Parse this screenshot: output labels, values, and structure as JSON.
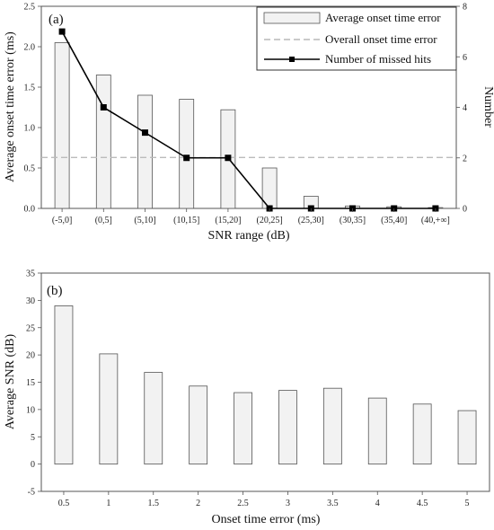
{
  "chart_data": [
    {
      "type": "bar",
      "panel_label": "(a)",
      "categories": [
        "(-5,0]",
        "(0,5]",
        "(5,10]",
        "(10,15]",
        "(15,20]",
        "(20,25]",
        "(25,30]",
        "(30,35]",
        "(35,40]",
        "(40,+∞]"
      ],
      "xlabel": "SNR range (dB)",
      "ylabel": "Average onset time error (ms)",
      "y2label": "Number",
      "ylim": [
        0,
        2.5
      ],
      "y2lim": [
        0,
        8
      ],
      "yticks": [
        "0.0",
        "0.5",
        "1.0",
        "1.5",
        "2.0",
        "2.5"
      ],
      "y2ticks": [
        "0",
        "2",
        "4",
        "6",
        "8"
      ],
      "legend_position": "top-right",
      "bars": {
        "name": "Average onset time error",
        "values": [
          2.05,
          1.65,
          1.4,
          1.35,
          1.22,
          0.5,
          0.15,
          0.03,
          0.02,
          0.01
        ],
        "color": "#f2f2f2"
      },
      "reference_line": {
        "name": "Overall onset time error",
        "value": 0.63,
        "color": "#bbbbbb"
      },
      "line": {
        "name": "Number of missed hits",
        "values": [
          7,
          4,
          3,
          2,
          2,
          0,
          0,
          0,
          0,
          0
        ],
        "axis": "right",
        "color": "#000000"
      }
    },
    {
      "type": "bar",
      "panel_label": "(b)",
      "categories": [
        "0.5",
        "1",
        "1.5",
        "2",
        "2.5",
        "3",
        "3.5",
        "4",
        "4.5",
        "5"
      ],
      "values": [
        29,
        20.2,
        16.8,
        14.3,
        13.1,
        13.5,
        13.9,
        12.1,
        11,
        9.8
      ],
      "xlabel": "Onset time error (ms)",
      "ylabel": "Average SNR (dB)",
      "ylim": [
        -5,
        35
      ],
      "yticks": [
        "-5",
        "0",
        "5",
        "10",
        "15",
        "20",
        "25",
        "30",
        "35"
      ],
      "color": "#f2f2f2"
    }
  ]
}
